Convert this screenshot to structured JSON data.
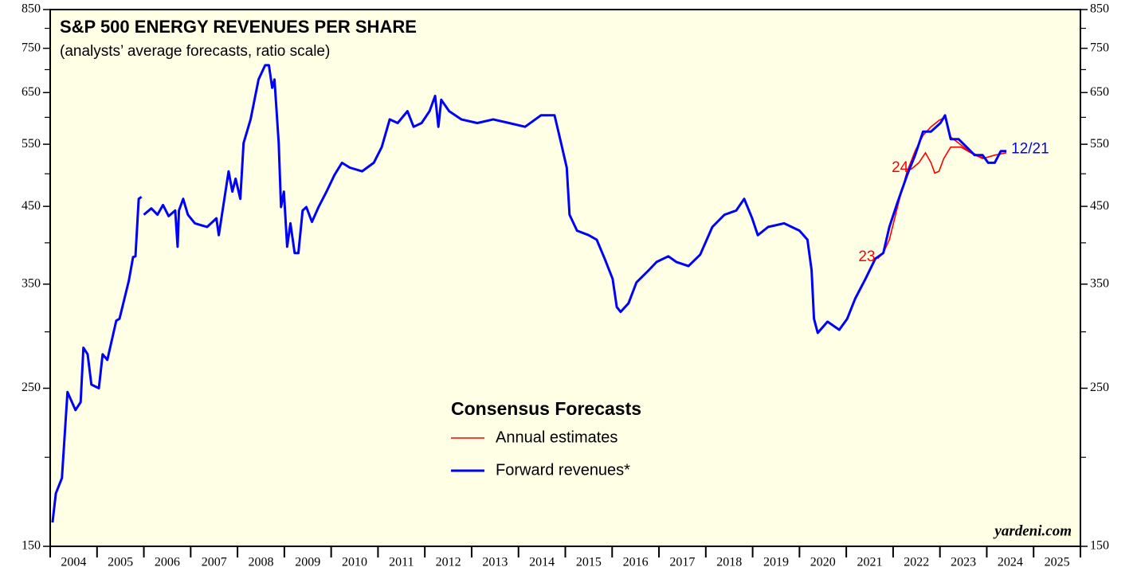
{
  "chart_data": {
    "type": "line",
    "title": "S&P 500 ENERGY REVENUES PER SHARE",
    "subtitle": "(analysts’ average forecasts, ratio scale)",
    "source": "yardeni.com",
    "legend_title": "Consensus Forecasts",
    "log_scale": true,
    "ylim": [
      150,
      850
    ],
    "yticks": [
      150,
      250,
      350,
      450,
      550,
      650,
      750,
      850
    ],
    "y_minor_ticks": [
      200,
      300,
      400,
      500,
      600,
      700,
      800
    ],
    "xlim": [
      2004,
      2026
    ],
    "xticks": [
      2004,
      2005,
      2006,
      2007,
      2008,
      2009,
      2010,
      2011,
      2012,
      2013,
      2014,
      2015,
      2016,
      2017,
      2018,
      2019,
      2020,
      2021,
      2022,
      2023,
      2024,
      2025,
      2026
    ],
    "year_labels": [
      "2004",
      "2005",
      "2006",
      "2007",
      "2008",
      "2009",
      "2010",
      "2011",
      "2012",
      "2013",
      "2014",
      "2015",
      "2016",
      "2017",
      "2018",
      "2019",
      "2020",
      "2021",
      "2022",
      "2023",
      "2024",
      "2025"
    ],
    "series": [
      {
        "name": "Annual estimates",
        "color": "#ff0000",
        "lines": [
          {
            "label": "23",
            "x": [
              2021.67,
              2021.79,
              2021.92,
              2022.06,
              2022.16,
              2022.3,
              2022.47,
              2022.64,
              2022.81,
              2022.98,
              2023.11,
              2023.23,
              2023.4,
              2023.57,
              2023.79,
              2023.96
            ],
            "values": [
              380,
              387,
              404,
              440,
              467,
              504,
              538,
              566,
              582,
              594,
              600,
              563,
              552,
              541,
              531,
              525
            ]
          },
          {
            "label": "24",
            "x": [
              2022.38,
              2022.55,
              2022.69,
              2022.81,
              2022.89,
              2022.98,
              2023.08,
              2023.23,
              2023.45,
              2023.66,
              2023.91,
              2024.17,
              2024.42
            ],
            "values": [
              507,
              518,
              535,
              518,
              501,
              504,
              525,
              545,
              545,
              535,
              525,
              531,
              535
            ]
          }
        ]
      },
      {
        "name": "Forward revenues*",
        "color": "#0000ff",
        "end_label": "12/21",
        "x": [
          2004.05,
          2004.12,
          2004.25,
          2004.37,
          2004.54,
          2004.65,
          2004.71,
          2004.8,
          2004.88,
          2005.04,
          2005.12,
          2005.22,
          2005.41,
          2005.48,
          2005.68,
          2005.77,
          2005.82,
          2005.89,
          2005.95,
          2005.97,
          2006.0,
          2006.16,
          2006.29,
          2006.41,
          2006.53,
          2006.67,
          2006.72,
          2006.75,
          2006.84,
          2006.94,
          2007.09,
          2007.35,
          2007.55,
          2007.6,
          2007.72,
          2007.81,
          2007.89,
          2007.96,
          2008.06,
          2008.13,
          2008.28,
          2008.45,
          2008.59,
          2008.67,
          2008.74,
          2008.79,
          2008.88,
          2008.93,
          2008.99,
          2009.06,
          2009.13,
          2009.22,
          2009.3,
          2009.39,
          2009.47,
          2009.59,
          2009.73,
          2009.9,
          2010.07,
          2010.23,
          2010.4,
          2010.66,
          2010.91,
          2011.08,
          2011.25,
          2011.42,
          2011.63,
          2011.76,
          2011.93,
          2012.1,
          2012.22,
          2012.29,
          2012.35,
          2012.52,
          2012.78,
          2013.12,
          2013.46,
          2013.8,
          2014.14,
          2014.48,
          2014.77,
          2014.91,
          2015.03,
          2015.09,
          2015.25,
          2015.5,
          2015.67,
          2015.84,
          2016.01,
          2016.1,
          2016.18,
          2016.35,
          2016.52,
          2016.78,
          2016.95,
          2017.2,
          2017.37,
          2017.63,
          2017.88,
          2018.14,
          2018.4,
          2018.65,
          2018.82,
          2018.99,
          2019.11,
          2019.33,
          2019.67,
          2020.0,
          2020.17,
          2020.26,
          2020.31,
          2020.39,
          2020.6,
          2020.85,
          2021.02,
          2021.19,
          2021.41,
          2021.62,
          2021.79,
          2021.92,
          2022.09,
          2022.3,
          2022.47,
          2022.64,
          2022.81,
          2023.01,
          2023.11,
          2023.23,
          2023.4,
          2023.57,
          2023.74,
          2023.91,
          2024.03,
          2024.17,
          2024.3,
          2024.42
        ],
        "values": [
          162,
          178,
          187,
          247,
          233,
          239,
          285,
          279,
          253,
          250,
          279,
          274,
          311,
          313,
          354,
          382,
          383,
          461,
          464,
          null,
          438,
          447,
          438,
          452,
          436,
          444,
          395,
          444,
          461,
          438,
          426,
          421,
          433,
          410,
          461,
          504,
          472,
          492,
          461,
          552,
          596,
          678,
          710,
          710,
          660,
          678,
          552,
          449,
          472,
          395,
          426,
          387,
          387,
          444,
          449,
          428,
          449,
          472,
          498,
          518,
          510,
          504,
          518,
          545,
          596,
          589,
          612,
          582,
          589,
          612,
          643,
          582,
          635,
          612,
          596,
          589,
          596,
          589,
          582,
          604,
          604,
          552,
          510,
          438,
          416,
          410,
          404,
          380,
          356,
          325,
          320,
          329,
          352,
          366,
          376,
          383,
          376,
          371,
          385,
          421,
          438,
          444,
          461,
          433,
          410,
          421,
          426,
          416,
          404,
          366,
          313,
          299,
          310,
          302,
          313,
          334,
          356,
          380,
          387,
          421,
          455,
          498,
          531,
          573,
          573,
          589,
          604,
          559,
          559,
          545,
          531,
          531,
          518,
          518,
          538,
          538
        ]
      }
    ]
  }
}
